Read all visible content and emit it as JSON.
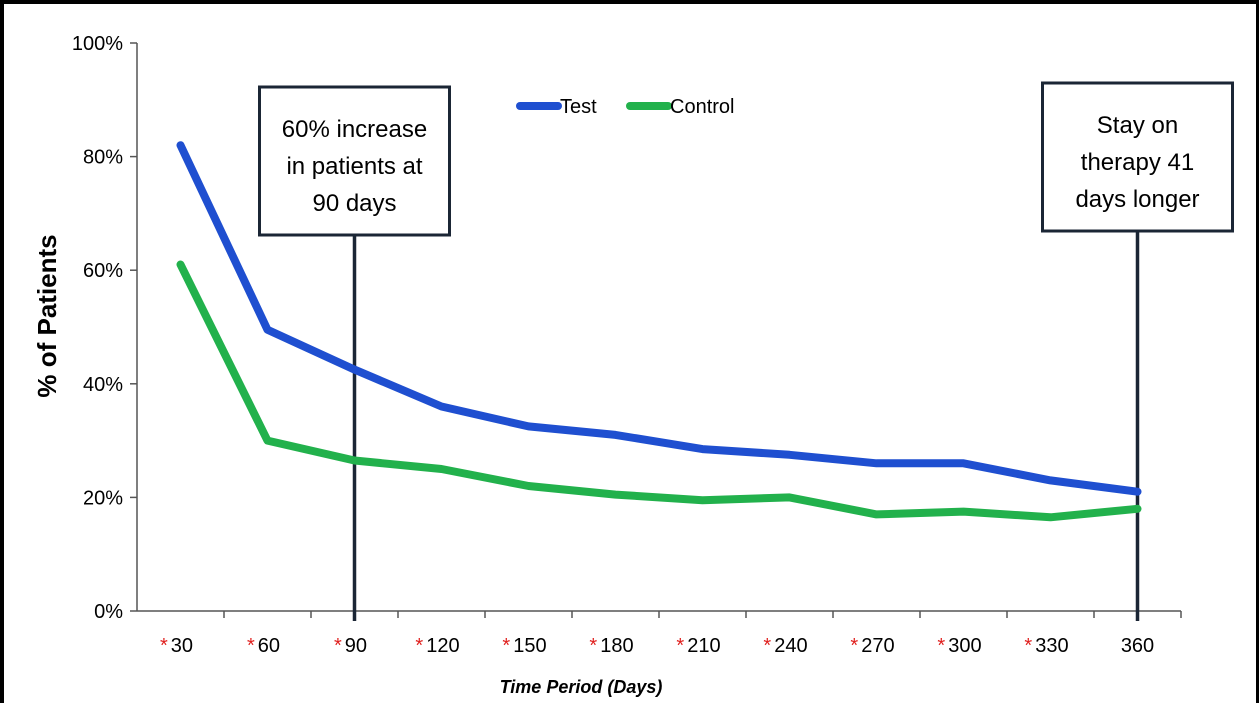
{
  "chart_data": {
    "type": "line",
    "title": "",
    "xlabel": "Time Period (Days)",
    "ylabel": "% of Patients",
    "x": [
      30,
      60,
      90,
      120,
      150,
      180,
      210,
      240,
      270,
      300,
      330,
      360
    ],
    "x_tick_labels": [
      "30",
      "60",
      "90",
      "120",
      "150",
      "180",
      "210",
      "240",
      "270",
      "300",
      "330",
      "360"
    ],
    "x_tick_starred": [
      true,
      true,
      true,
      true,
      true,
      true,
      true,
      true,
      true,
      true,
      true,
      false
    ],
    "star_symbol": "*",
    "y_ticks": [
      0,
      20,
      40,
      60,
      80,
      100
    ],
    "y_tick_labels": [
      "0%",
      "20%",
      "40%",
      "60%",
      "80%",
      "100%"
    ],
    "ylim": [
      0,
      100
    ],
    "grid": false,
    "legend_position": "top-center",
    "series": [
      {
        "name": "Test",
        "color": "#1f4fd0",
        "values": [
          82,
          49.5,
          42.5,
          36,
          32.5,
          31,
          28.5,
          27.5,
          26,
          26,
          23,
          21
        ]
      },
      {
        "name": "Control",
        "color": "#22b14c",
        "values": [
          61,
          30,
          26.5,
          25,
          22,
          20.5,
          19.5,
          20,
          17,
          17.5,
          16.5,
          18
        ]
      }
    ],
    "annotations": [
      {
        "x": 90,
        "lines": [
          "60% increase",
          "in patients at",
          "90 days"
        ]
      },
      {
        "x": 360,
        "lines": [
          "Stay on",
          "therapy 41",
          "days longer"
        ]
      }
    ]
  }
}
